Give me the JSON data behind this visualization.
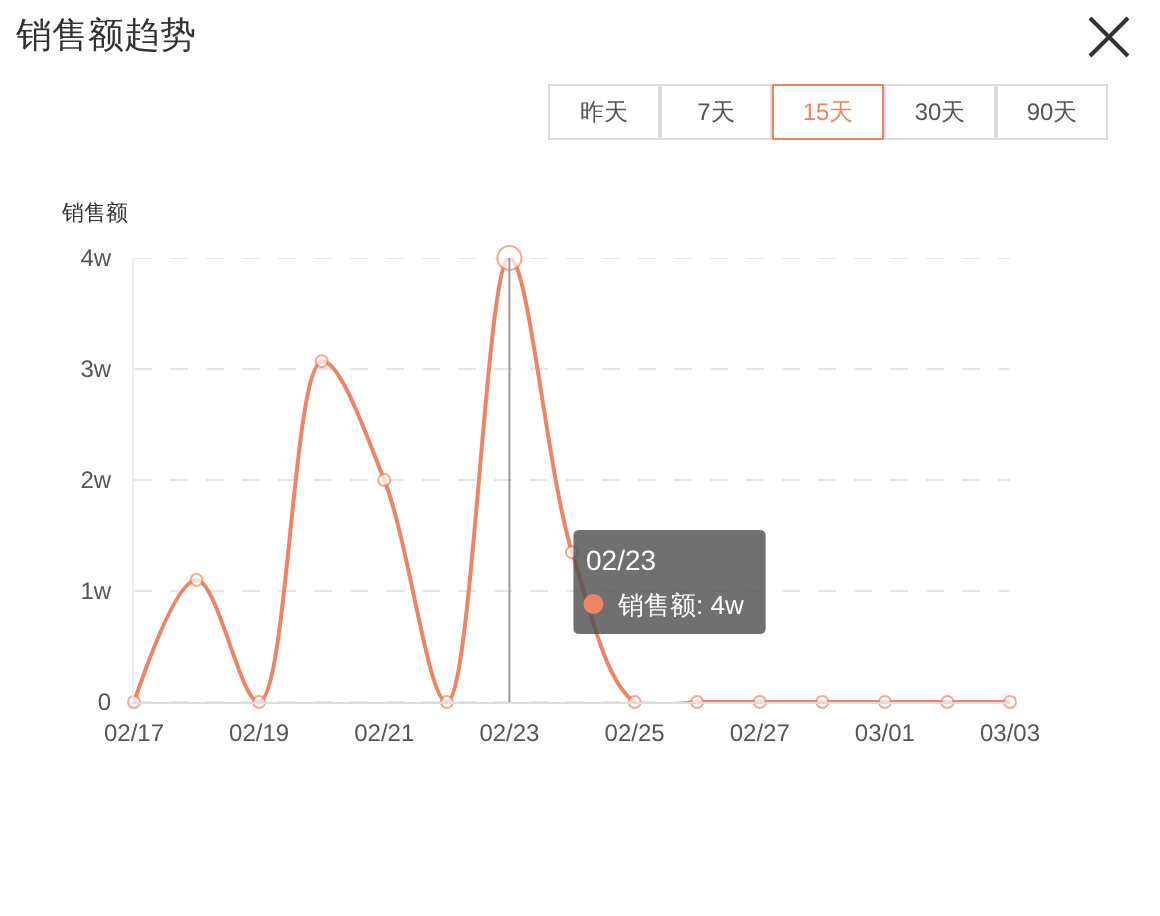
{
  "chart_data": {
    "type": "line",
    "title": "销售额趋势",
    "ylabel": "销售额",
    "categories": [
      "02/17",
      null,
      "02/19",
      null,
      "02/21",
      null,
      "02/23",
      null,
      "02/25",
      null,
      "02/27",
      null,
      "03/01",
      null,
      "03/03"
    ],
    "values": [
      0,
      1.1,
      0,
      3.07,
      2,
      0,
      4,
      1.35,
      0,
      0,
      0,
      0,
      0,
      0,
      0
    ],
    "color": "#ec8566",
    "ylim": [
      0,
      4
    ],
    "yticks": [
      0,
      {
        "value": 1,
        "label": "1w"
      },
      {
        "value": 2,
        "label": "2w"
      },
      {
        "value": 3,
        "label": "3w"
      },
      {
        "value": 4,
        "label": "4w"
      }
    ],
    "grid": "y",
    "marker": "circle",
    "line_style": "solid",
    "ref_lines": [
      {
        "axis": "x",
        "value": "02/23",
        "color": "#999999"
      }
    ],
    "annotations": [
      "昨天",
      "7天",
      "15天",
      "30天",
      "90天",
      {
        "text": "02/23\n销售额: 4w",
        "x": "02/23"
      }
    ]
  }
}
